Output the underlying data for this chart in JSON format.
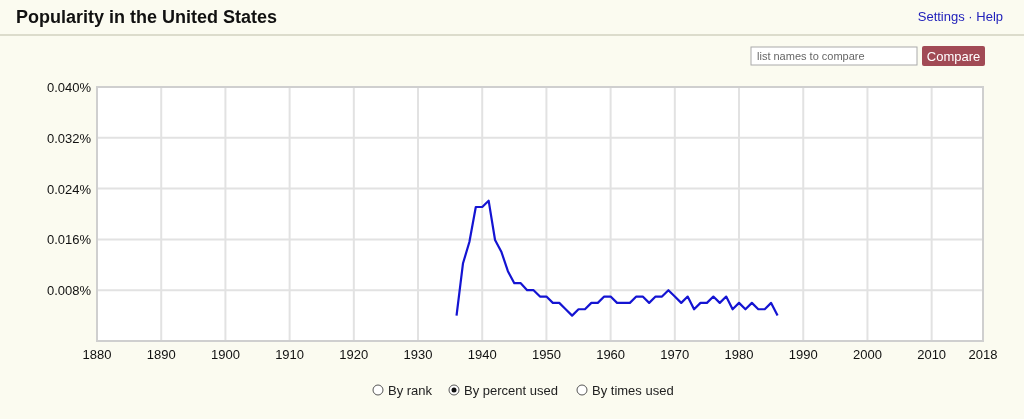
{
  "chart_data": {
    "type": "line",
    "title": "Popularity in the United States",
    "x": [
      1936,
      1937,
      1938,
      1939,
      1940,
      1941,
      1942,
      1943,
      1944,
      1945,
      1946,
      1947,
      1948,
      1949,
      1950,
      1951,
      1952,
      1953,
      1954,
      1955,
      1956,
      1957,
      1958,
      1959,
      1960,
      1961,
      1962,
      1963,
      1964,
      1965,
      1966,
      1967,
      1968,
      1969,
      1970,
      1971,
      1972,
      1973,
      1974,
      1975,
      1976,
      1977,
      1978,
      1979,
      1980,
      1981,
      1982,
      1983,
      1984,
      1985,
      1986
    ],
    "series": [
      {
        "color": "#1414d2",
        "values": [
          0.004,
          0.0122,
          0.0156,
          0.0211,
          0.0211,
          0.0221,
          0.0159,
          0.014,
          0.011,
          0.0091,
          0.0091,
          0.008,
          0.008,
          0.007,
          0.007,
          0.006,
          0.006,
          0.005,
          0.004,
          0.005,
          0.005,
          0.006,
          0.006,
          0.007,
          0.007,
          0.006,
          0.006,
          0.006,
          0.007,
          0.007,
          0.006,
          0.007,
          0.007,
          0.008,
          0.007,
          0.006,
          0.007,
          0.005,
          0.006,
          0.006,
          0.007,
          0.006,
          0.007,
          0.005,
          0.006,
          0.005,
          0.006,
          0.005,
          0.005,
          0.006,
          0.004
        ]
      }
    ],
    "xlim": [
      1880,
      2018
    ],
    "xticks": [
      1880,
      1890,
      1900,
      1910,
      1920,
      1930,
      1940,
      1950,
      1960,
      1970,
      1980,
      1990,
      2000,
      2010,
      2018
    ],
    "ylim": [
      0,
      0.04
    ],
    "yticks": [
      {
        "value": 0,
        "label": null
      },
      {
        "value": 0.008,
        "label": "0.008%"
      },
      {
        "value": 0.016,
        "label": "0.016%"
      },
      {
        "value": 0.024,
        "label": "0.024%"
      },
      {
        "value": 0.032,
        "label": "0.032%"
      },
      {
        "value": 0.04,
        "label": "0.040%"
      }
    ],
    "grid": true,
    "marker": "none",
    "line_style": "solid",
    "annotations": [
      "Settings · Help",
      "list names to compare",
      "Compare",
      "By rank",
      "By percent used",
      "By times used"
    ]
  }
}
